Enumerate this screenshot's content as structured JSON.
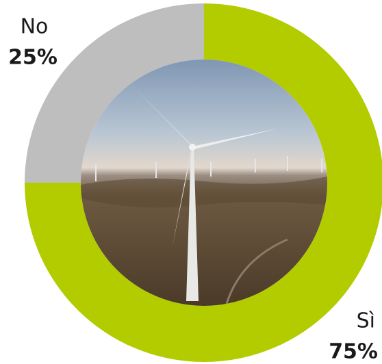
{
  "chart_data": {
    "type": "donut",
    "categories": [
      "Sì",
      "No"
    ],
    "values": [
      75,
      25
    ],
    "value_labels": [
      "75%",
      "25%"
    ],
    "colors": [
      "#b3cc00",
      "#bebebe"
    ]
  }
}
